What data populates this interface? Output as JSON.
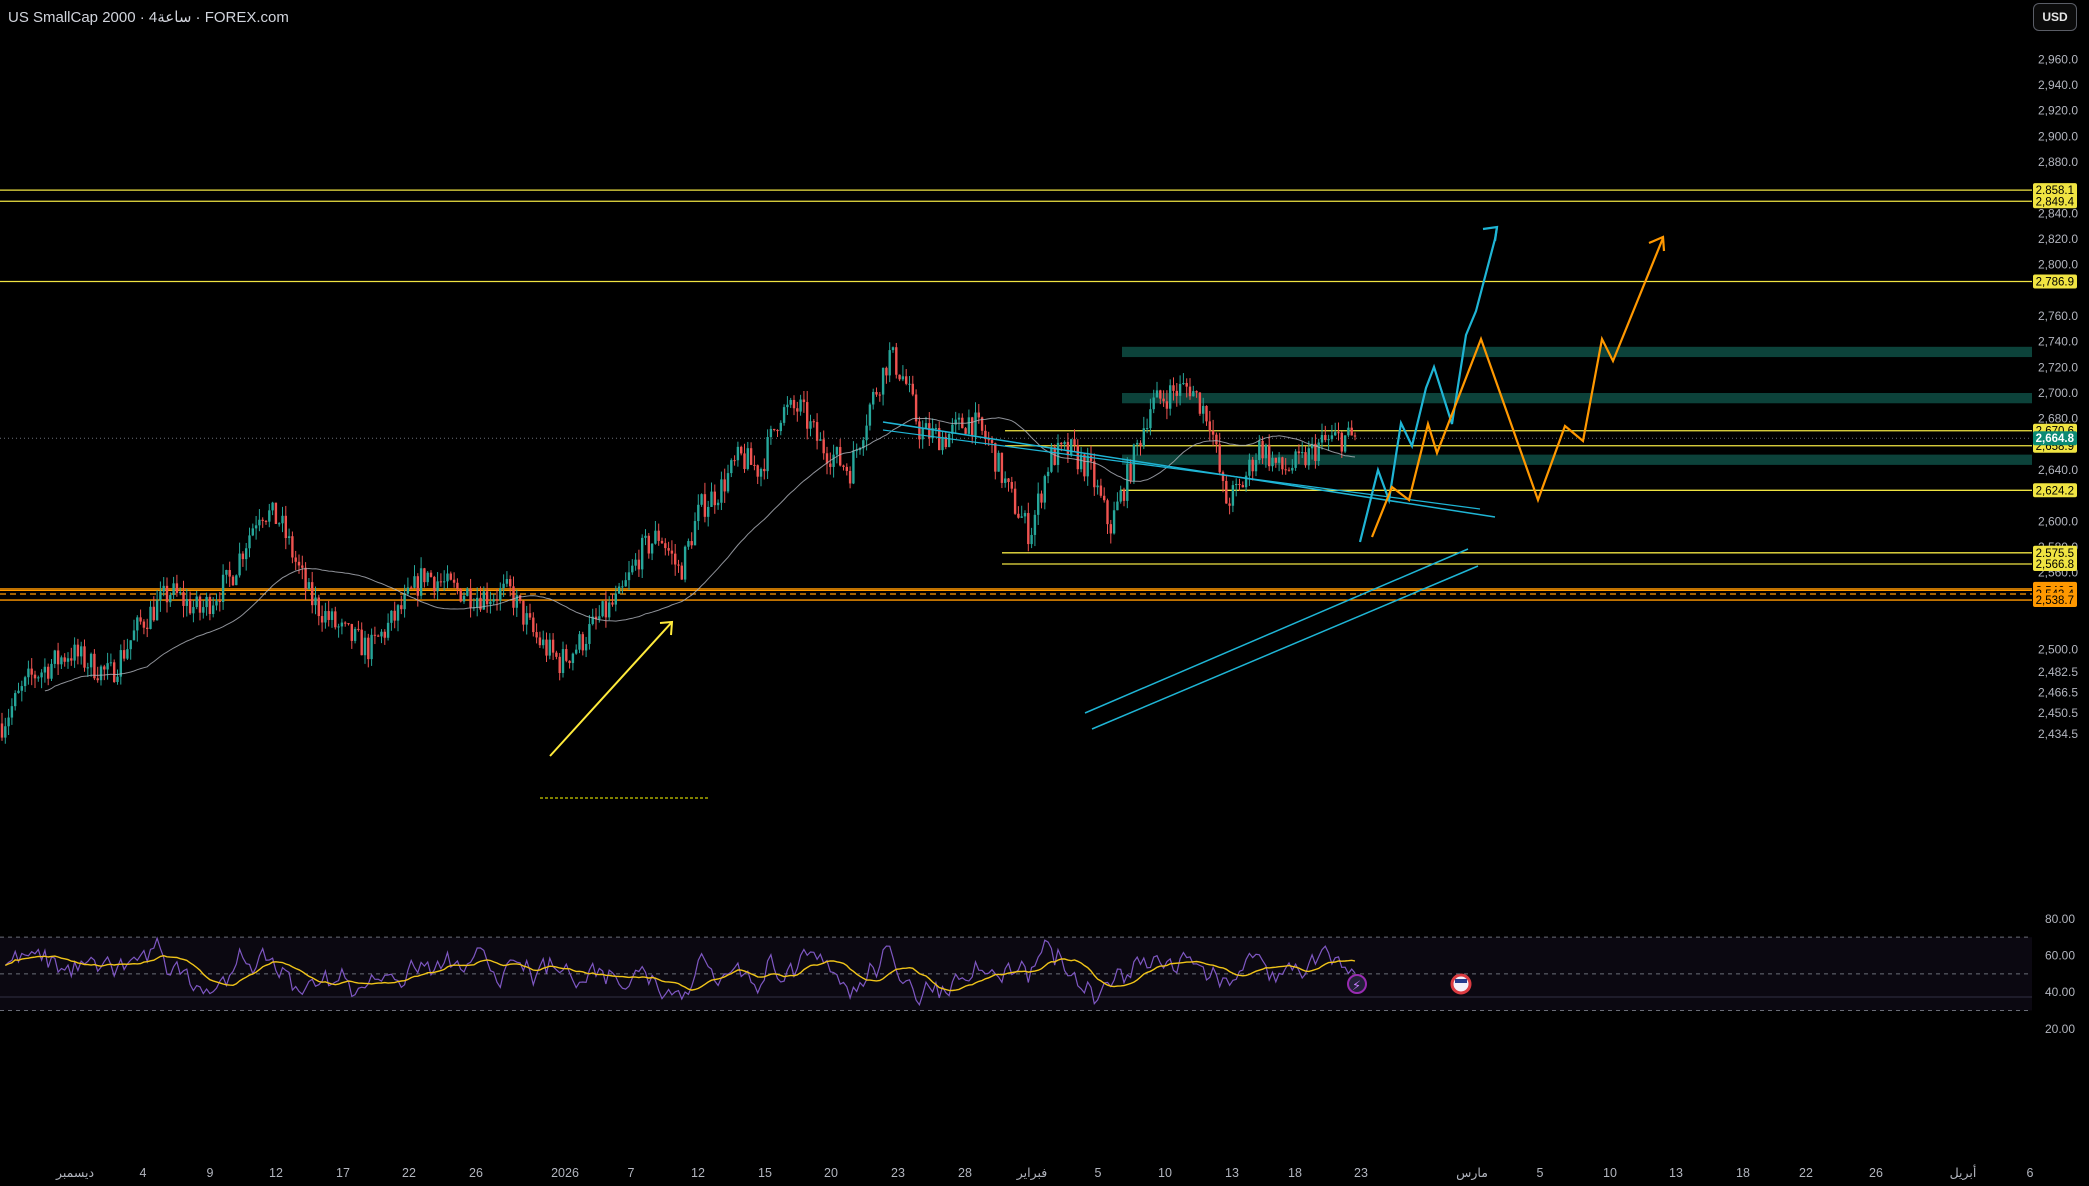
{
  "header": {
    "symbol_title": "US SmallCap 2000 · 4ساعة · FOREX.com",
    "currency_button": "USD"
  },
  "colors": {
    "background": "#000000",
    "up_candle": "#26a69a",
    "down_candle": "#ef5350",
    "level_line": "#f0e442",
    "support_band": "#ff9800",
    "trendline": "#1fb5d5",
    "projection_blue": "#1fb5d5",
    "projection_orange": "#ff9800",
    "moving_average": "#b2b5be",
    "rsi_line": "#7e57c2",
    "rsi_ma": "#f0c419",
    "zone_fill": "#0e4d44"
  },
  "chart_data": {
    "type": "candlestick",
    "price_axis": {
      "ticks": [
        "2,960.0",
        "2,940.0",
        "2,920.0",
        "2,900.0",
        "2,880.0",
        "2,840.0",
        "2,820.0",
        "2,800.0",
        "2,760.0",
        "2,740.0",
        "2,720.0",
        "2,700.0",
        "2,680.0",
        "2,640.0",
        "2,600.0",
        "2,580.0",
        "2,560.0",
        "2,500.0",
        "2,482.5",
        "2,466.5",
        "2,450.5",
        "2,434.5"
      ],
      "ylim": [
        2420,
        2975
      ]
    },
    "time_axis": {
      "labels": [
        "ديسمبر",
        "4",
        "9",
        "12",
        "17",
        "22",
        "26",
        "2026",
        "7",
        "12",
        "15",
        "20",
        "23",
        "28",
        "فبراير",
        "5",
        "10",
        "13",
        "18",
        "23",
        "مارس",
        "5",
        "10",
        "13",
        "18",
        "22",
        "26",
        "أبريل",
        "6"
      ]
    },
    "horizontal_levels": [
      {
        "price": 2858.1,
        "label": "2,858.1",
        "style": "yellow"
      },
      {
        "price": 2849.4,
        "label": "2,849.4",
        "style": "yellow"
      },
      {
        "price": 2786.9,
        "label": "2,786.9",
        "style": "yellow"
      },
      {
        "price": 2670.6,
        "label": "2,670.6",
        "style": "yellow"
      },
      {
        "price": 2658.9,
        "label": "2,658.9",
        "style": "yellow"
      },
      {
        "price": 2624.2,
        "label": "2,624.2",
        "style": "yellow"
      },
      {
        "price": 2575.5,
        "label": "2,575.5",
        "style": "yellow"
      },
      {
        "price": 2566.8,
        "label": "2,566.8",
        "style": "yellow"
      },
      {
        "price": 2547.4,
        "label": "2,547.4",
        "style": "orange"
      },
      {
        "price": 2546.2,
        "label": "2,546.2",
        "style": "orange"
      },
      {
        "price": 2543.4,
        "label": "2,543.4",
        "style": "orange"
      },
      {
        "price": 2538.7,
        "label": "2,538.7",
        "style": "orange"
      }
    ],
    "last_price": {
      "price": 2664.8,
      "label": "2,664.8"
    },
    "zones": [
      {
        "top": 2736,
        "bottom": 2728
      },
      {
        "top": 2700,
        "bottom": 2692
      },
      {
        "top": 2652,
        "bottom": 2644
      }
    ],
    "rsi": {
      "axis_ticks": [
        "80.00",
        "60.00",
        "40.00",
        "20.00"
      ],
      "ylim": [
        16,
        84
      ],
      "upper": 70,
      "middle": 50,
      "lower": 30
    }
  }
}
